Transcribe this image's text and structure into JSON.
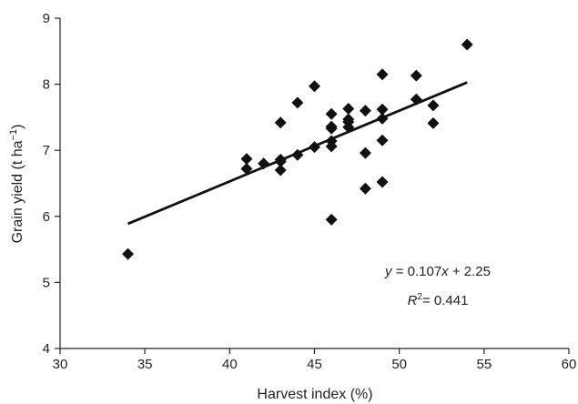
{
  "chart_data": {
    "type": "scatter",
    "xlabel": "Harvest index (%)",
    "ylabel_parts": {
      "main": "Grain yield (t ha",
      "sup": "−1",
      "close": ")"
    },
    "xlim": [
      30,
      60
    ],
    "ylim": [
      4,
      9
    ],
    "xticks": [
      30,
      35,
      40,
      45,
      50,
      55,
      60
    ],
    "yticks": [
      4,
      5,
      6,
      7,
      8,
      9
    ],
    "grid": false,
    "colors": {
      "marker": "#111111",
      "line": "#111111",
      "axis": "#222222"
    },
    "series": [
      {
        "marker": "diamond",
        "points": [
          [
            34,
            5.43
          ],
          [
            41,
            6.72
          ],
          [
            41,
            6.87
          ],
          [
            42,
            6.8
          ],
          [
            43,
            6.7
          ],
          [
            43,
            6.83
          ],
          [
            43,
            6.86
          ],
          [
            43,
            7.42
          ],
          [
            44,
            6.93
          ],
          [
            44,
            7.72
          ],
          [
            45,
            7.05
          ],
          [
            45,
            7.97
          ],
          [
            46,
            5.95
          ],
          [
            46,
            7.06
          ],
          [
            46,
            7.14
          ],
          [
            46,
            7.33
          ],
          [
            46,
            7.36
          ],
          [
            46,
            7.55
          ],
          [
            47,
            7.35
          ],
          [
            47,
            7.43
          ],
          [
            47,
            7.47
          ],
          [
            47,
            7.63
          ],
          [
            48,
            6.42
          ],
          [
            48,
            6.96
          ],
          [
            48,
            7.6
          ],
          [
            49,
            6.52
          ],
          [
            49,
            7.15
          ],
          [
            49,
            7.48
          ],
          [
            49,
            7.62
          ],
          [
            49,
            8.15
          ],
          [
            51,
            7.77
          ],
          [
            51,
            8.13
          ],
          [
            52,
            7.41
          ],
          [
            52,
            7.68
          ],
          [
            54,
            8.6
          ]
        ]
      }
    ],
    "trendline": {
      "slope": 0.107,
      "intercept": 2.25,
      "x_start": 34,
      "x_end": 54
    },
    "annotations": {
      "equation": {
        "y": "y",
        "eq": " = 0.107",
        "x": "x",
        "rest": " + 2.25"
      },
      "r2": {
        "R": "R",
        "sup": "2",
        "rest": "= 0.441"
      }
    }
  }
}
